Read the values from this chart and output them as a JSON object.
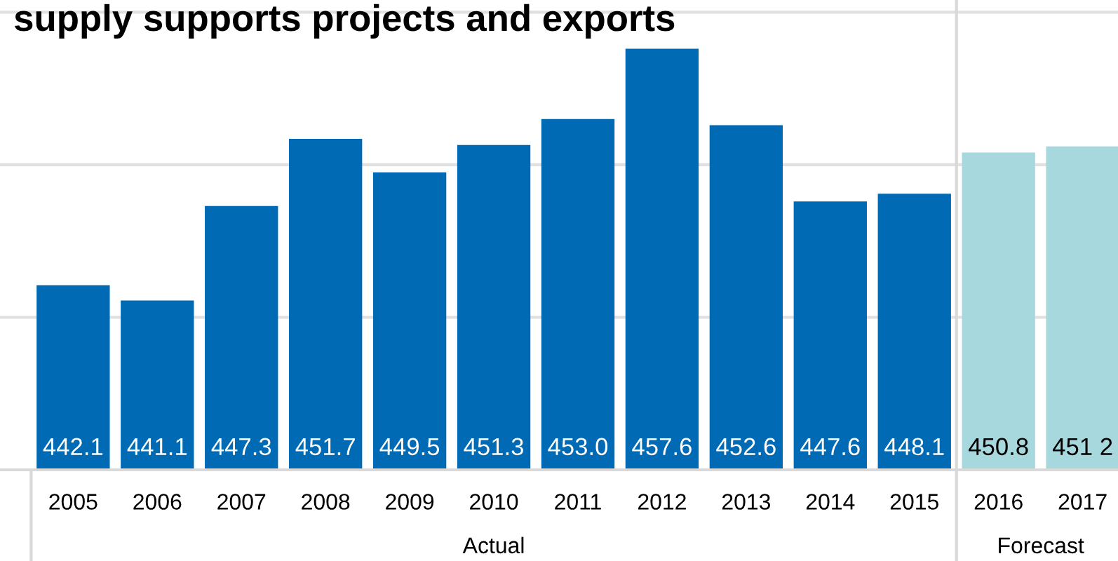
{
  "chart_data": {
    "type": "bar",
    "title": "supply supports projects and exports",
    "categories": [
      "2005",
      "2006",
      "2007",
      "2008",
      "2009",
      "2010",
      "2011",
      "2012",
      "2013",
      "2014",
      "2015",
      "2016",
      "2017"
    ],
    "values": [
      442.1,
      441.1,
      447.3,
      451.7,
      449.5,
      451.3,
      453.0,
      457.6,
      452.6,
      447.6,
      448.1,
      450.8,
      451.2
    ],
    "value_labels": [
      "442.1",
      "441.1",
      "447.3",
      "451.7",
      "449.5",
      "451.3",
      "453.0",
      "457.6",
      "452.6",
      "447.6",
      "448.1",
      "450.8",
      "451 2"
    ],
    "colors": [
      "#006ab4",
      "#006ab4",
      "#006ab4",
      "#006ab4",
      "#006ab4",
      "#006ab4",
      "#006ab4",
      "#006ab4",
      "#006ab4",
      "#006ab4",
      "#006ab4",
      "#a7d8de",
      "#a7d8de"
    ],
    "annotations": [
      "Actual",
      "Forecast"
    ],
    "ylim": [
      430,
      460.8
    ],
    "yticks": [
      {
        "value": 440,
        "label": null
      },
      {
        "value": 450,
        "label": null
      },
      {
        "value": 460,
        "label": null
      }
    ],
    "ref_lines": [
      {
        "axis": "x",
        "value": "2016",
        "color": "#d9d9d9"
      }
    ],
    "tick_labels": "x",
    "grid": "y"
  }
}
